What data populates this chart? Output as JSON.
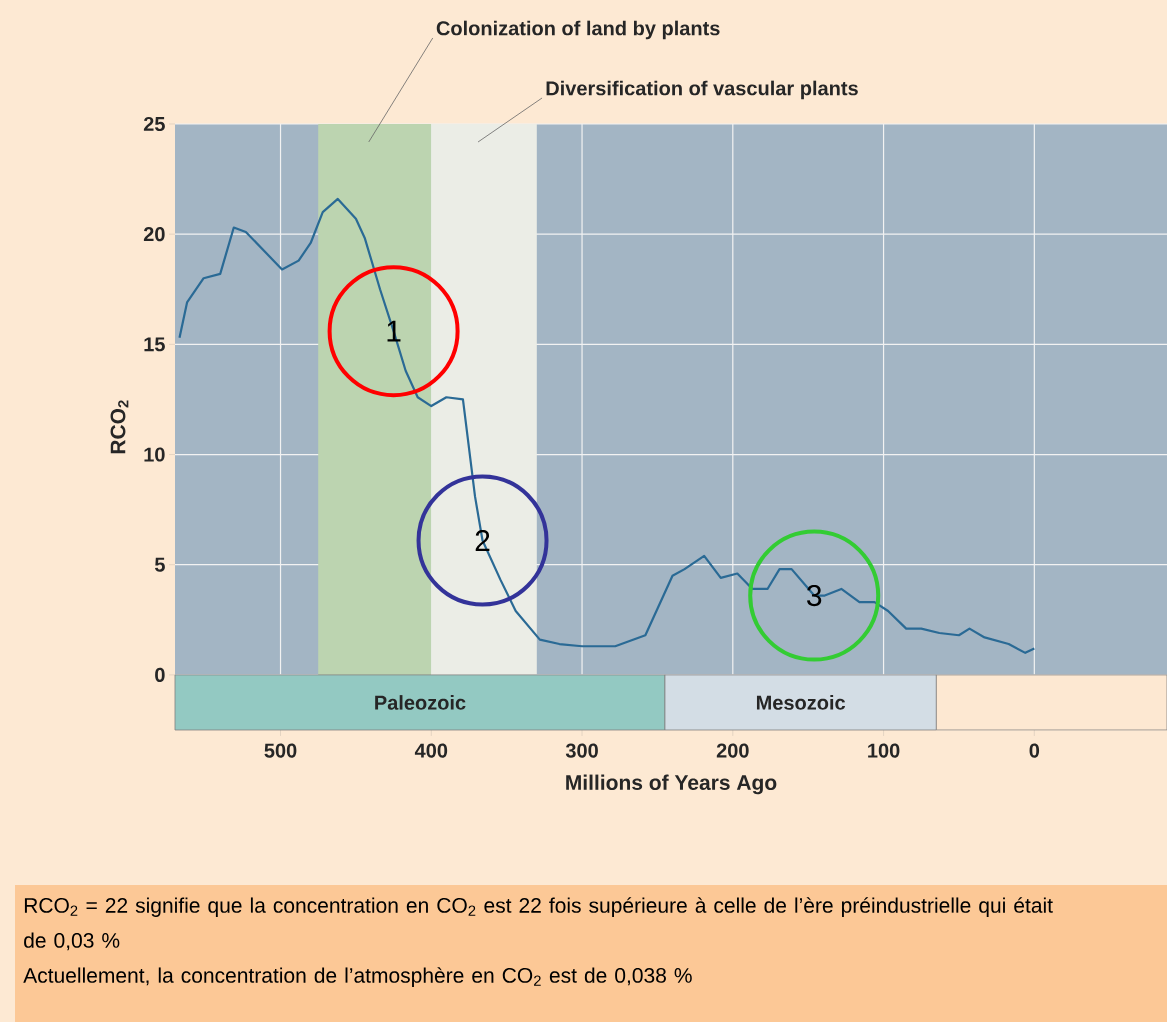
{
  "chart_data": {
    "type": "line",
    "xlabel": "Millions of Years Ago",
    "ylabel": "RCO$_{2}$",
    "color": "#2a6a95",
    "x": [
      567,
      562,
      551,
      540,
      531,
      523,
      499,
      488,
      480,
      472,
      462,
      450,
      444,
      434,
      425,
      417,
      409,
      400,
      390,
      379,
      371,
      366,
      354,
      344,
      328,
      315,
      300,
      278,
      258,
      240,
      232,
      219,
      208,
      197,
      187,
      177,
      169,
      161,
      146,
      139,
      128,
      116,
      106,
      97,
      85,
      75,
      63,
      50,
      43,
      33,
      17,
      6,
      0
    ],
    "values": [
      15.3,
      16.9,
      18.0,
      18.2,
      20.3,
      20.1,
      18.4,
      18.8,
      19.6,
      21.0,
      21.6,
      20.7,
      19.8,
      17.5,
      15.6,
      13.8,
      12.6,
      12.2,
      12.6,
      12.5,
      8.1,
      6.1,
      4.3,
      2.9,
      1.6,
      1.4,
      1.3,
      1.3,
      1.8,
      4.5,
      4.8,
      5.4,
      4.4,
      4.6,
      3.9,
      3.9,
      4.8,
      4.8,
      3.6,
      3.6,
      3.9,
      3.3,
      3.3,
      2.9,
      2.1,
      2.1,
      1.9,
      1.8,
      2.1,
      1.7,
      1.4,
      1.0,
      1.2
    ],
    "xlim": [
      570,
      -88
    ],
    "ylim": [
      -2.5,
      25
    ],
    "xticks": [
      500,
      400,
      300,
      200,
      100,
      0
    ],
    "yticks": [
      0,
      5,
      10,
      15,
      20,
      25
    ],
    "grid": true,
    "bands": [
      {
        "axis": "x",
        "from": 475,
        "to": 400,
        "label": "Colonization of land by plants",
        "color": "#bcd4b0"
      },
      {
        "axis": "x",
        "from": 400,
        "to": 330,
        "label": "Diversification of vascular plants",
        "color": "#ebede6"
      },
      {
        "axis": "x",
        "from": 570,
        "to": 245,
        "label": "Paleozoic",
        "color": "#93c9c2"
      },
      {
        "axis": "x",
        "from": 245,
        "to": 65,
        "label": "Mesozoic",
        "color": "#d3dde5"
      },
      {
        "axis": "x",
        "from": 65,
        "to": -88,
        "color": "#fde8d2"
      }
    ],
    "annotations": [
      {
        "text": "1",
        "x": 425,
        "y": 15.6
      },
      {
        "text": "2",
        "x": 366,
        "y": 6.1
      },
      {
        "text": "3",
        "x": 146,
        "y": 3.6
      },
      "RCO$_{2}$ = 22 signifie que la concentration en CO$_{2}$ est 22 fois supérieure à celle de l’ère préindustrielle qui était de 0,03 %",
      "Actuellement, la concentration de l’atmosphère en CO$_{2}$ est de 0,038 %"
    ]
  }
}
